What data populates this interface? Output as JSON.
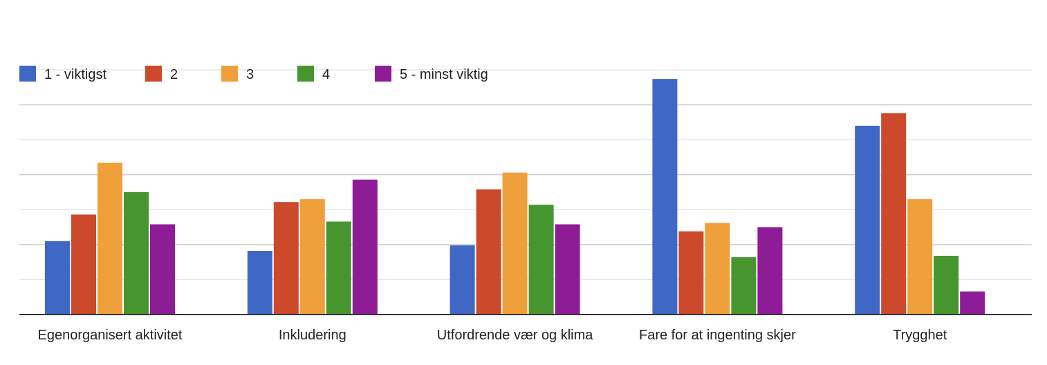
{
  "chart_data": {
    "type": "bar",
    "categories": [
      "Egenorganisert aktivitet",
      "Inkludering",
      "Utfordrende vær og klima",
      "Fare for at ingenting skjer",
      "Trygghet"
    ],
    "series": [
      {
        "name": "1 - viktigst",
        "color": "#3F67C6",
        "values": [
          10.5,
          9.1,
          9.9,
          33.7,
          27.0
        ]
      },
      {
        "name": "2",
        "color": "#CC4A2B",
        "values": [
          14.3,
          16.1,
          17.9,
          11.9,
          28.8
        ]
      },
      {
        "name": "3",
        "color": "#F0A03A",
        "values": [
          21.7,
          16.5,
          20.3,
          13.1,
          16.5
        ]
      },
      {
        "name": "4",
        "color": "#47952F",
        "values": [
          17.5,
          13.3,
          15.7,
          8.2,
          8.4
        ]
      },
      {
        "name": "5 - minst viktig",
        "color": "#8E1C96",
        "values": [
          12.9,
          19.3,
          12.9,
          12.5,
          3.3
        ]
      }
    ],
    "ylim": [
      0,
      35
    ],
    "grid": true,
    "gridlines": 7,
    "legend": "top-left",
    "title": "",
    "xlabel": "",
    "ylabel": ""
  }
}
